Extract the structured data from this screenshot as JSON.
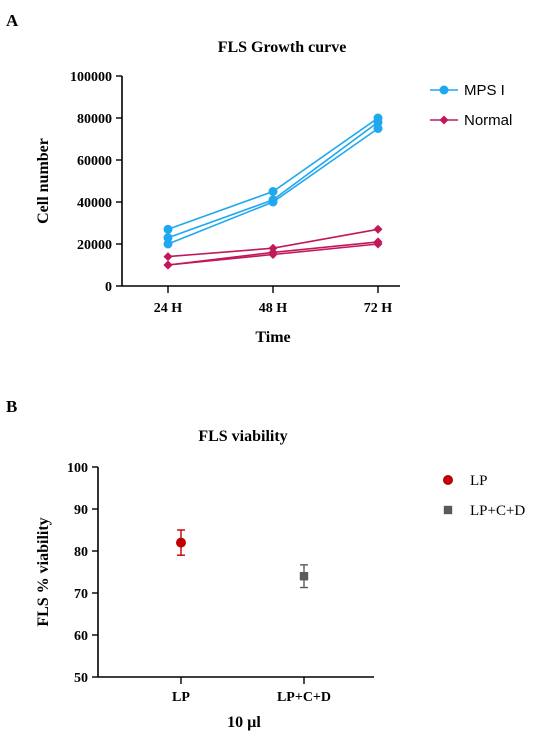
{
  "chart_data": [
    {
      "panel_label": "A",
      "type": "line",
      "title": "FLS Growth curve",
      "xlabel": "Time",
      "ylabel": "Cell number",
      "categories": [
        "24 H",
        "48 H",
        "72 H"
      ],
      "ylim": [
        0,
        100000
      ],
      "yticks": [
        0,
        20000,
        40000,
        60000,
        80000,
        100000
      ],
      "legend_position": "top-right",
      "series": [
        {
          "name": "MPS I",
          "color": "#1fa8ee",
          "marker": "circle",
          "replicates": [
            [
              27000,
              45000,
              80000
            ],
            [
              23000,
              41000,
              78000
            ],
            [
              20000,
              40000,
              75000
            ]
          ]
        },
        {
          "name": "Normal",
          "color": "#c2185b",
          "marker": "diamond",
          "replicates": [
            [
              14000,
              18000,
              27000
            ],
            [
              10000,
              16000,
              21000
            ],
            [
              10000,
              15000,
              20000
            ]
          ]
        }
      ]
    },
    {
      "panel_label": "B",
      "type": "scatter",
      "title": "FLS viability",
      "xlabel": "10 µl",
      "ylabel": "FLS % viability",
      "categories": [
        "LP",
        "LP+C+D"
      ],
      "ylim": [
        50,
        100
      ],
      "yticks": [
        50,
        60,
        70,
        80,
        90,
        100
      ],
      "legend_position": "top-right",
      "series": [
        {
          "name": "LP",
          "color": "#c00000",
          "marker": "circle",
          "value": 82,
          "error": 3
        },
        {
          "name": "LP+C+D",
          "color": "#5a5a5a",
          "marker": "square",
          "value": 74,
          "error": 2.7
        }
      ]
    }
  ]
}
